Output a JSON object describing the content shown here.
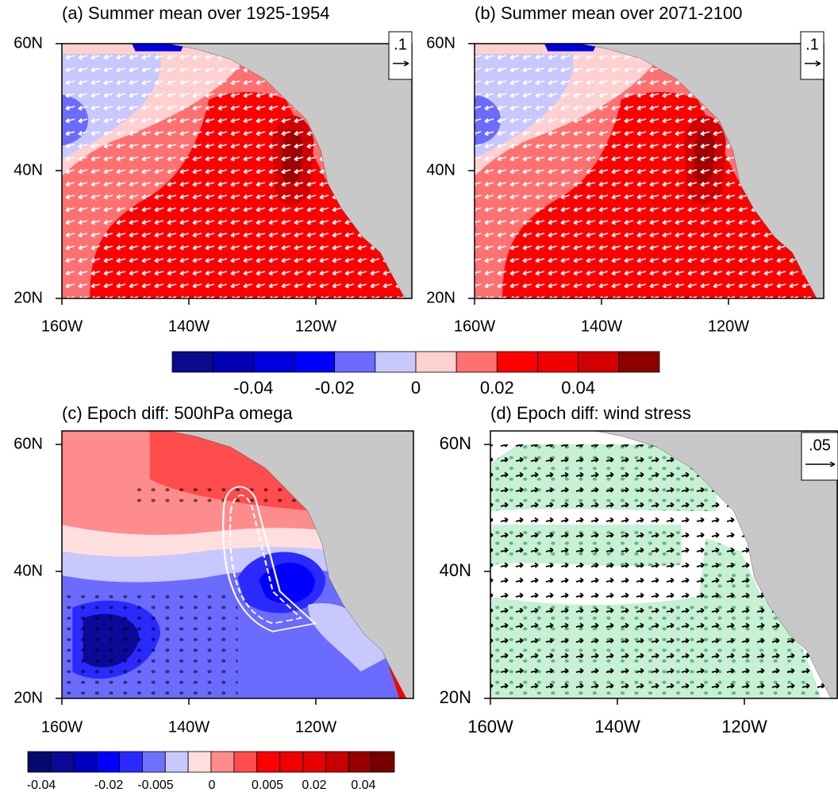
{
  "panels": [
    {
      "title": "(a) Summer mean over 1925-1954",
      "x_labels": [
        "160W",
        "140W",
        "120W"
      ],
      "y_labels": [
        "60N",
        "40N",
        "20N"
      ],
      "reference_vector": ".1"
    },
    {
      "title": "(b) Summer mean over 2071-2100",
      "x_labels": [
        "160W",
        "140W",
        "120W"
      ],
      "y_labels": [
        "60N",
        "40N",
        "20N"
      ],
      "reference_vector": ".1"
    },
    {
      "title": "(c) Epoch diff: 500hPa omega",
      "x_labels": [
        "160W",
        "140W",
        "120W"
      ],
      "y_labels": [
        "60N",
        "40N",
        "20N"
      ]
    },
    {
      "title": "(d) Epoch diff: wind stress",
      "x_labels": [
        "160W",
        "140W",
        "120W"
      ],
      "y_labels": [
        "60N",
        "40N",
        "20N"
      ],
      "reference_vector": ".05"
    }
  ],
  "colorbars": [
    {
      "colors": [
        "#0a0a8c",
        "#0000b4",
        "#0000dc",
        "#0000ff",
        "#6b6bff",
        "#c8c8ff",
        "#ffd0d0",
        "#ff7070",
        "#ff0000",
        "#f00000",
        "#d20000",
        "#8c0000"
      ],
      "labels": [
        "-0.04",
        "-0.02",
        "0",
        "0.02",
        "0.04"
      ]
    },
    {
      "colors": [
        "#050a6e",
        "#0a0a96",
        "#0000c0",
        "#0000ff",
        "#2a2aff",
        "#7070ff",
        "#c8c8ff",
        "#ffdede",
        "#ff8c8c",
        "#ff4c4c",
        "#ff0000",
        "#f00000",
        "#e60000",
        "#c80000",
        "#960000",
        "#780000"
      ],
      "labels": [
        "-0.04",
        "-0.02",
        "-0.005",
        "0",
        "0.005",
        "0.02",
        "0.04"
      ]
    }
  ]
}
